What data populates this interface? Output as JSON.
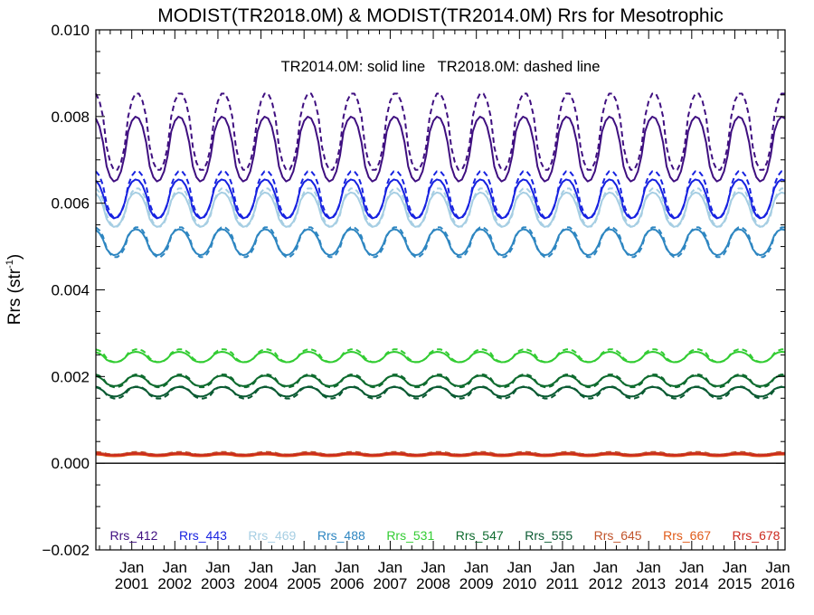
{
  "colors": {
    "axis": "#000000",
    "zero_line": "#000000",
    "background": "#ffffff"
  },
  "chart_data": {
    "type": "line",
    "title": "MODIST(TR2018.0M) & MODIST(TR2014.0M)  Rrs for Mesotrophic",
    "annotation": "TR2014.0M: solid line   TR2018.0M: dashed line",
    "ylabel": "Rrs (str",
    "ylabel_sup": "-1",
    "ylabel_close": ")",
    "xlim": [
      "2000-03",
      "2016-03"
    ],
    "ylim": [
      -0.002,
      0.01
    ],
    "yticks": [
      "0.010",
      "0.008",
      "0.006",
      "0.004",
      "0.002",
      "0.000",
      "−0.002"
    ],
    "ytick_values": [
      0.01,
      0.008,
      0.006,
      0.004,
      0.002,
      0.0,
      -0.002
    ],
    "xticks": [
      {
        "month": "Jan",
        "year": "2001"
      },
      {
        "month": "Jan",
        "year": "2002"
      },
      {
        "month": "Jan",
        "year": "2003"
      },
      {
        "month": "Jan",
        "year": "2004"
      },
      {
        "month": "Jan",
        "year": "2005"
      },
      {
        "month": "Jan",
        "year": "2006"
      },
      {
        "month": "Jan",
        "year": "2007"
      },
      {
        "month": "Jan",
        "year": "2008"
      },
      {
        "month": "Jan",
        "year": "2009"
      },
      {
        "month": "Jan",
        "year": "2010"
      },
      {
        "month": "Jan",
        "year": "2011"
      },
      {
        "month": "Jan",
        "year": "2012"
      },
      {
        "month": "Jan",
        "year": "2013"
      },
      {
        "month": "Jan",
        "year": "2014"
      },
      {
        "month": "Jan",
        "year": "2015"
      },
      {
        "month": "Jan",
        "year": "2016"
      }
    ],
    "zero_line": 0.0,
    "legend_placement": "bottom",
    "grid": false,
    "series": [
      {
        "name": "Rrs_412",
        "color": "#3f0f80",
        "solid": {
          "mean": 0.00725,
          "amp": 0.00075,
          "peak_month": 1.2
        },
        "dashed": {
          "mean": 0.00765,
          "amp": 0.0009,
          "peak_month": 1.5
        }
      },
      {
        "name": "Rrs_443",
        "color": "#1722e0",
        "solid": {
          "mean": 0.0061,
          "amp": 0.00045,
          "peak_month": 1.2
        },
        "dashed": {
          "mean": 0.0062,
          "amp": 0.00055,
          "peak_month": 1.5
        }
      },
      {
        "name": "Rrs_469",
        "color": "#a6cee3",
        "solid": {
          "mean": 0.00585,
          "amp": 0.0004,
          "peak_month": 1.2
        },
        "dashed": {
          "mean": 0.0059,
          "amp": 0.00045,
          "peak_month": 1.5
        }
      },
      {
        "name": "Rrs_488",
        "color": "#2e86c1",
        "solid": {
          "mean": 0.0051,
          "amp": 0.0003,
          "peak_month": 1.2
        },
        "dashed": {
          "mean": 0.0051,
          "amp": 0.00035,
          "peak_month": 1.5
        }
      },
      {
        "name": "Rrs_531",
        "color": "#33cc33",
        "solid": {
          "mean": 0.00245,
          "amp": 0.00012,
          "peak_month": 1.2
        },
        "dashed": {
          "mean": 0.00248,
          "amp": 0.00015,
          "peak_month": 1.5
        }
      },
      {
        "name": "Rrs_547",
        "color": "#0e6b2e",
        "solid": {
          "mean": 0.0019,
          "amp": 0.00012,
          "peak_month": 1.2
        },
        "dashed": {
          "mean": 0.0019,
          "amp": 0.00015,
          "peak_month": 1.5
        }
      },
      {
        "name": "Rrs_555",
        "color": "#0a5a32",
        "solid": {
          "mean": 0.00165,
          "amp": 0.00011,
          "peak_month": 1.2
        },
        "dashed": {
          "mean": 0.00163,
          "amp": 0.00014,
          "peak_month": 1.5
        }
      },
      {
        "name": "Rrs_645",
        "color": "#c0532a",
        "solid": {
          "mean": 0.00022,
          "amp": 2e-05,
          "peak_month": 1.2
        },
        "dashed": {
          "mean": 0.00023,
          "amp": 3e-05,
          "peak_month": 1.5
        }
      },
      {
        "name": "Rrs_667",
        "color": "#e05a17",
        "solid": {
          "mean": 0.00018,
          "amp": 2e-05,
          "peak_month": 1.2
        },
        "dashed": {
          "mean": 0.00019,
          "amp": 2e-05,
          "peak_month": 1.5
        }
      },
      {
        "name": "Rrs_678",
        "color": "#cc2a1e",
        "solid": {
          "mean": 0.0002,
          "amp": 2e-05,
          "peak_month": 1.2
        },
        "dashed": {
          "mean": 0.00021,
          "amp": 2e-05,
          "peak_month": 1.5
        }
      }
    ]
  }
}
